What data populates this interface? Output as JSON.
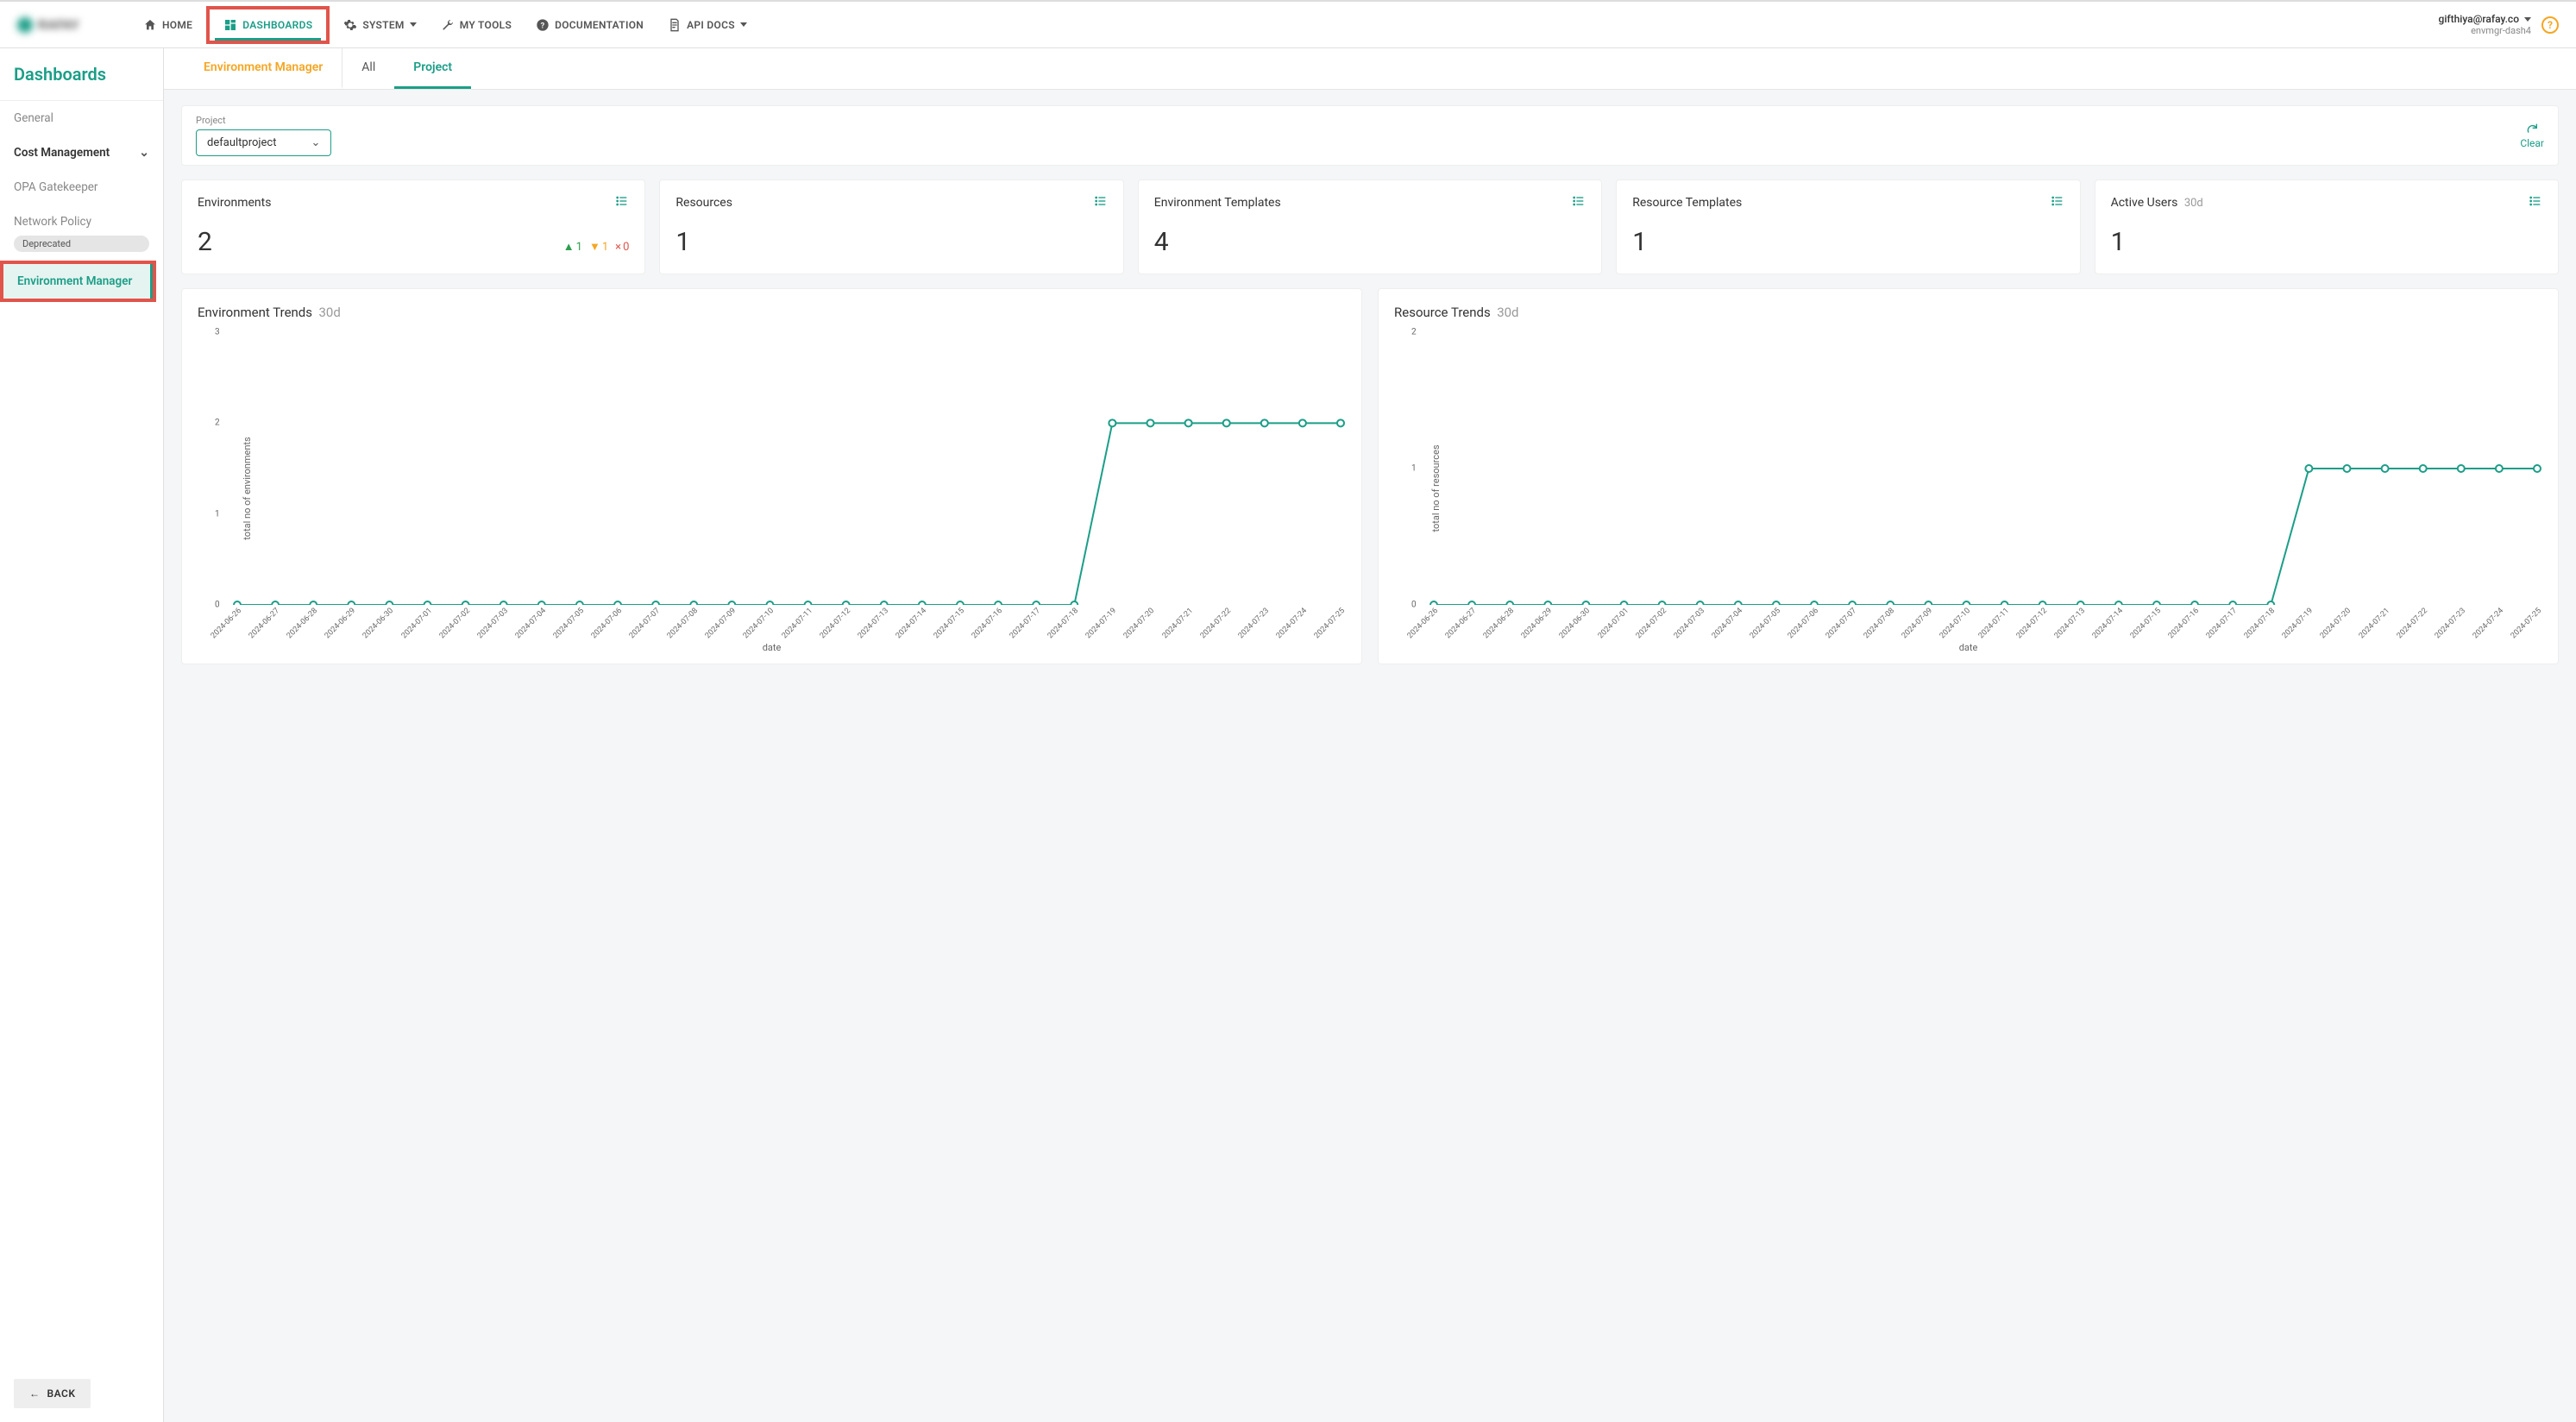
{
  "topnav": {
    "home": "HOME",
    "dashboards": "DASHBOARDS",
    "system": "SYSTEM",
    "mytools": "MY TOOLS",
    "documentation": "DOCUMENTATION",
    "apidocs": "API DOCS"
  },
  "user": {
    "email": "gifthiya@rafay.co",
    "context": "envmgr-dash4"
  },
  "sidebar": {
    "title": "Dashboards",
    "general": "General",
    "cost": "Cost Management",
    "opa": "OPA Gatekeeper",
    "network": "Network Policy",
    "deprecated": "Deprecated",
    "envmgr": "Environment Manager",
    "back": "BACK"
  },
  "tabs": {
    "envmgr": "Environment Manager",
    "all": "All",
    "project": "Project"
  },
  "filter": {
    "label": "Project",
    "value": "defaultproject",
    "clear": "Clear"
  },
  "cards": {
    "environments": {
      "title": "Environments",
      "value": "2",
      "up": "1",
      "down": "1",
      "x": "0"
    },
    "resources": {
      "title": "Resources",
      "value": "1"
    },
    "envtemplates": {
      "title": "Environment Templates",
      "value": "4"
    },
    "restemplates": {
      "title": "Resource Templates",
      "value": "1"
    },
    "activeusers": {
      "title": "Active Users",
      "period": "30d",
      "value": "1"
    }
  },
  "charts": {
    "env": {
      "title": "Environment Trends",
      "period": "30d",
      "ylabel": "total no of environments",
      "xlabel": "date",
      "type": "line",
      "line_color": "#1b9e87",
      "marker_fill": "#ffffff",
      "marker_stroke": "#1b9e87",
      "marker_radius": 4,
      "background": "#ffffff",
      "ylim": [
        0,
        3
      ],
      "yticks": [
        0,
        1,
        2,
        3
      ],
      "dates": [
        "2024-06-26",
        "2024-06-27",
        "2024-06-28",
        "2024-06-29",
        "2024-06-30",
        "2024-07-01",
        "2024-07-02",
        "2024-07-03",
        "2024-07-04",
        "2024-07-05",
        "2024-07-06",
        "2024-07-07",
        "2024-07-08",
        "2024-07-09",
        "2024-07-10",
        "2024-07-11",
        "2024-07-12",
        "2024-07-13",
        "2024-07-14",
        "2024-07-15",
        "2024-07-16",
        "2024-07-17",
        "2024-07-18",
        "2024-07-19",
        "2024-07-20",
        "2024-07-21",
        "2024-07-22",
        "2024-07-23",
        "2024-07-24",
        "2024-07-25"
      ],
      "values": [
        0,
        0,
        0,
        0,
        0,
        0,
        0,
        0,
        0,
        0,
        0,
        0,
        0,
        0,
        0,
        0,
        0,
        0,
        0,
        0,
        0,
        0,
        0,
        2,
        2,
        2,
        2,
        2,
        2,
        2
      ]
    },
    "res": {
      "title": "Resource Trends",
      "period": "30d",
      "ylabel": "total no of resources",
      "xlabel": "date",
      "type": "line",
      "line_color": "#1b9e87",
      "marker_fill": "#ffffff",
      "marker_stroke": "#1b9e87",
      "marker_radius": 4,
      "background": "#ffffff",
      "ylim": [
        0,
        2
      ],
      "yticks": [
        0,
        1,
        2
      ],
      "dates": [
        "2024-06-26",
        "2024-06-27",
        "2024-06-28",
        "2024-06-29",
        "2024-06-30",
        "2024-07-01",
        "2024-07-02",
        "2024-07-03",
        "2024-07-04",
        "2024-07-05",
        "2024-07-06",
        "2024-07-07",
        "2024-07-08",
        "2024-07-09",
        "2024-07-10",
        "2024-07-11",
        "2024-07-12",
        "2024-07-13",
        "2024-07-14",
        "2024-07-15",
        "2024-07-16",
        "2024-07-17",
        "2024-07-18",
        "2024-07-19",
        "2024-07-20",
        "2024-07-21",
        "2024-07-22",
        "2024-07-23",
        "2024-07-24",
        "2024-07-25"
      ],
      "values": [
        0,
        0,
        0,
        0,
        0,
        0,
        0,
        0,
        0,
        0,
        0,
        0,
        0,
        0,
        0,
        0,
        0,
        0,
        0,
        0,
        0,
        0,
        0,
        1,
        1,
        1,
        1,
        1,
        1,
        1
      ]
    }
  }
}
